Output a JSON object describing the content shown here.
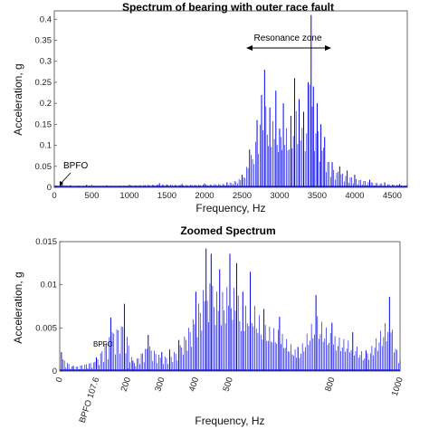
{
  "chart_data": [
    {
      "type": "line",
      "title": "Spectrum of bearing with outer race fault",
      "xlabel": "Frequency, Hz",
      "ylabel": "Acceleration, g",
      "xlim": [
        0,
        4700
      ],
      "ylim": [
        0,
        0.42
      ],
      "x_ticks": [
        0,
        500,
        1000,
        1500,
        2000,
        2500,
        3000,
        3500,
        4000,
        4500
      ],
      "y_ticks": [
        0,
        0.05,
        0.1,
        0.15,
        0.2,
        0.25,
        0.3,
        0.35,
        0.4
      ],
      "color": "#0000ee",
      "annotations": [
        {
          "text": "BPFO",
          "x": 107.6,
          "y": 0.0
        },
        {
          "text": "Resonance zone",
          "x_from": 2650,
          "x_to": 3650,
          "y": 0.34
        }
      ],
      "series": [
        {
          "x": [
            0,
            107.6,
            215,
            323,
            430,
            700,
            1000,
            1400,
            1700,
            2000,
            2300,
            2500,
            2600,
            2700,
            2760,
            2800,
            2870,
            2950,
            3000,
            3050,
            3150,
            3200,
            3260,
            3320,
            3380,
            3420,
            3450,
            3500,
            3550,
            3600,
            3700,
            3800,
            3900,
            4000,
            4200,
            4400,
            4600,
            4700
          ],
          "y": [
            0.006,
            0.008,
            0.005,
            0.004,
            0.006,
            0.005,
            0.006,
            0.01,
            0.008,
            0.009,
            0.012,
            0.03,
            0.09,
            0.16,
            0.22,
            0.28,
            0.19,
            0.23,
            0.14,
            0.2,
            0.17,
            0.26,
            0.21,
            0.18,
            0.25,
            0.41,
            0.24,
            0.2,
            0.15,
            0.12,
            0.06,
            0.05,
            0.04,
            0.03,
            0.018,
            0.012,
            0.008,
            0.006
          ]
        }
      ]
    },
    {
      "type": "line",
      "title": "Zoomed Spectrum",
      "xlabel": "Frequency, Hz",
      "ylabel": "Acceleration, g",
      "xlim": [
        0,
        1000
      ],
      "ylim": [
        0,
        0.015
      ],
      "x_ticks": [
        0,
        107.6,
        200,
        300,
        400,
        500,
        800,
        1000
      ],
      "x_tick_labels": [
        "0",
        "BPFO 107.6",
        "200",
        "300",
        "400",
        "500",
        "800",
        "1000"
      ],
      "y_ticks": [
        0,
        0.005,
        0.01,
        0.015
      ],
      "y_tick_labels": [
        "0",
        "0.005",
        "0.01",
        "0.015"
      ],
      "color": "#0000ee",
      "annotations": [
        {
          "text": "BPFO",
          "x": 107.6,
          "y": 0.0016
        }
      ],
      "series": [
        {
          "x": [
            5,
            40,
            107.6,
            150,
            190,
            215,
            260,
            300,
            323,
            350,
            400,
            430,
            445,
            470,
            500,
            520,
            538,
            560,
            600,
            646,
            700,
            753,
            800,
            861,
            900,
            969,
            1000
          ],
          "y": [
            0.0022,
            0.0006,
            0.0016,
            0.0062,
            0.0078,
            0.0012,
            0.0042,
            0.0022,
            0.0025,
            0.0036,
            0.0092,
            0.0142,
            0.0136,
            0.0118,
            0.0136,
            0.0125,
            0.0092,
            0.0115,
            0.0072,
            0.0063,
            0.0028,
            0.0088,
            0.0056,
            0.0045,
            0.0024,
            0.0086,
            0.0012
          ]
        }
      ]
    }
  ]
}
